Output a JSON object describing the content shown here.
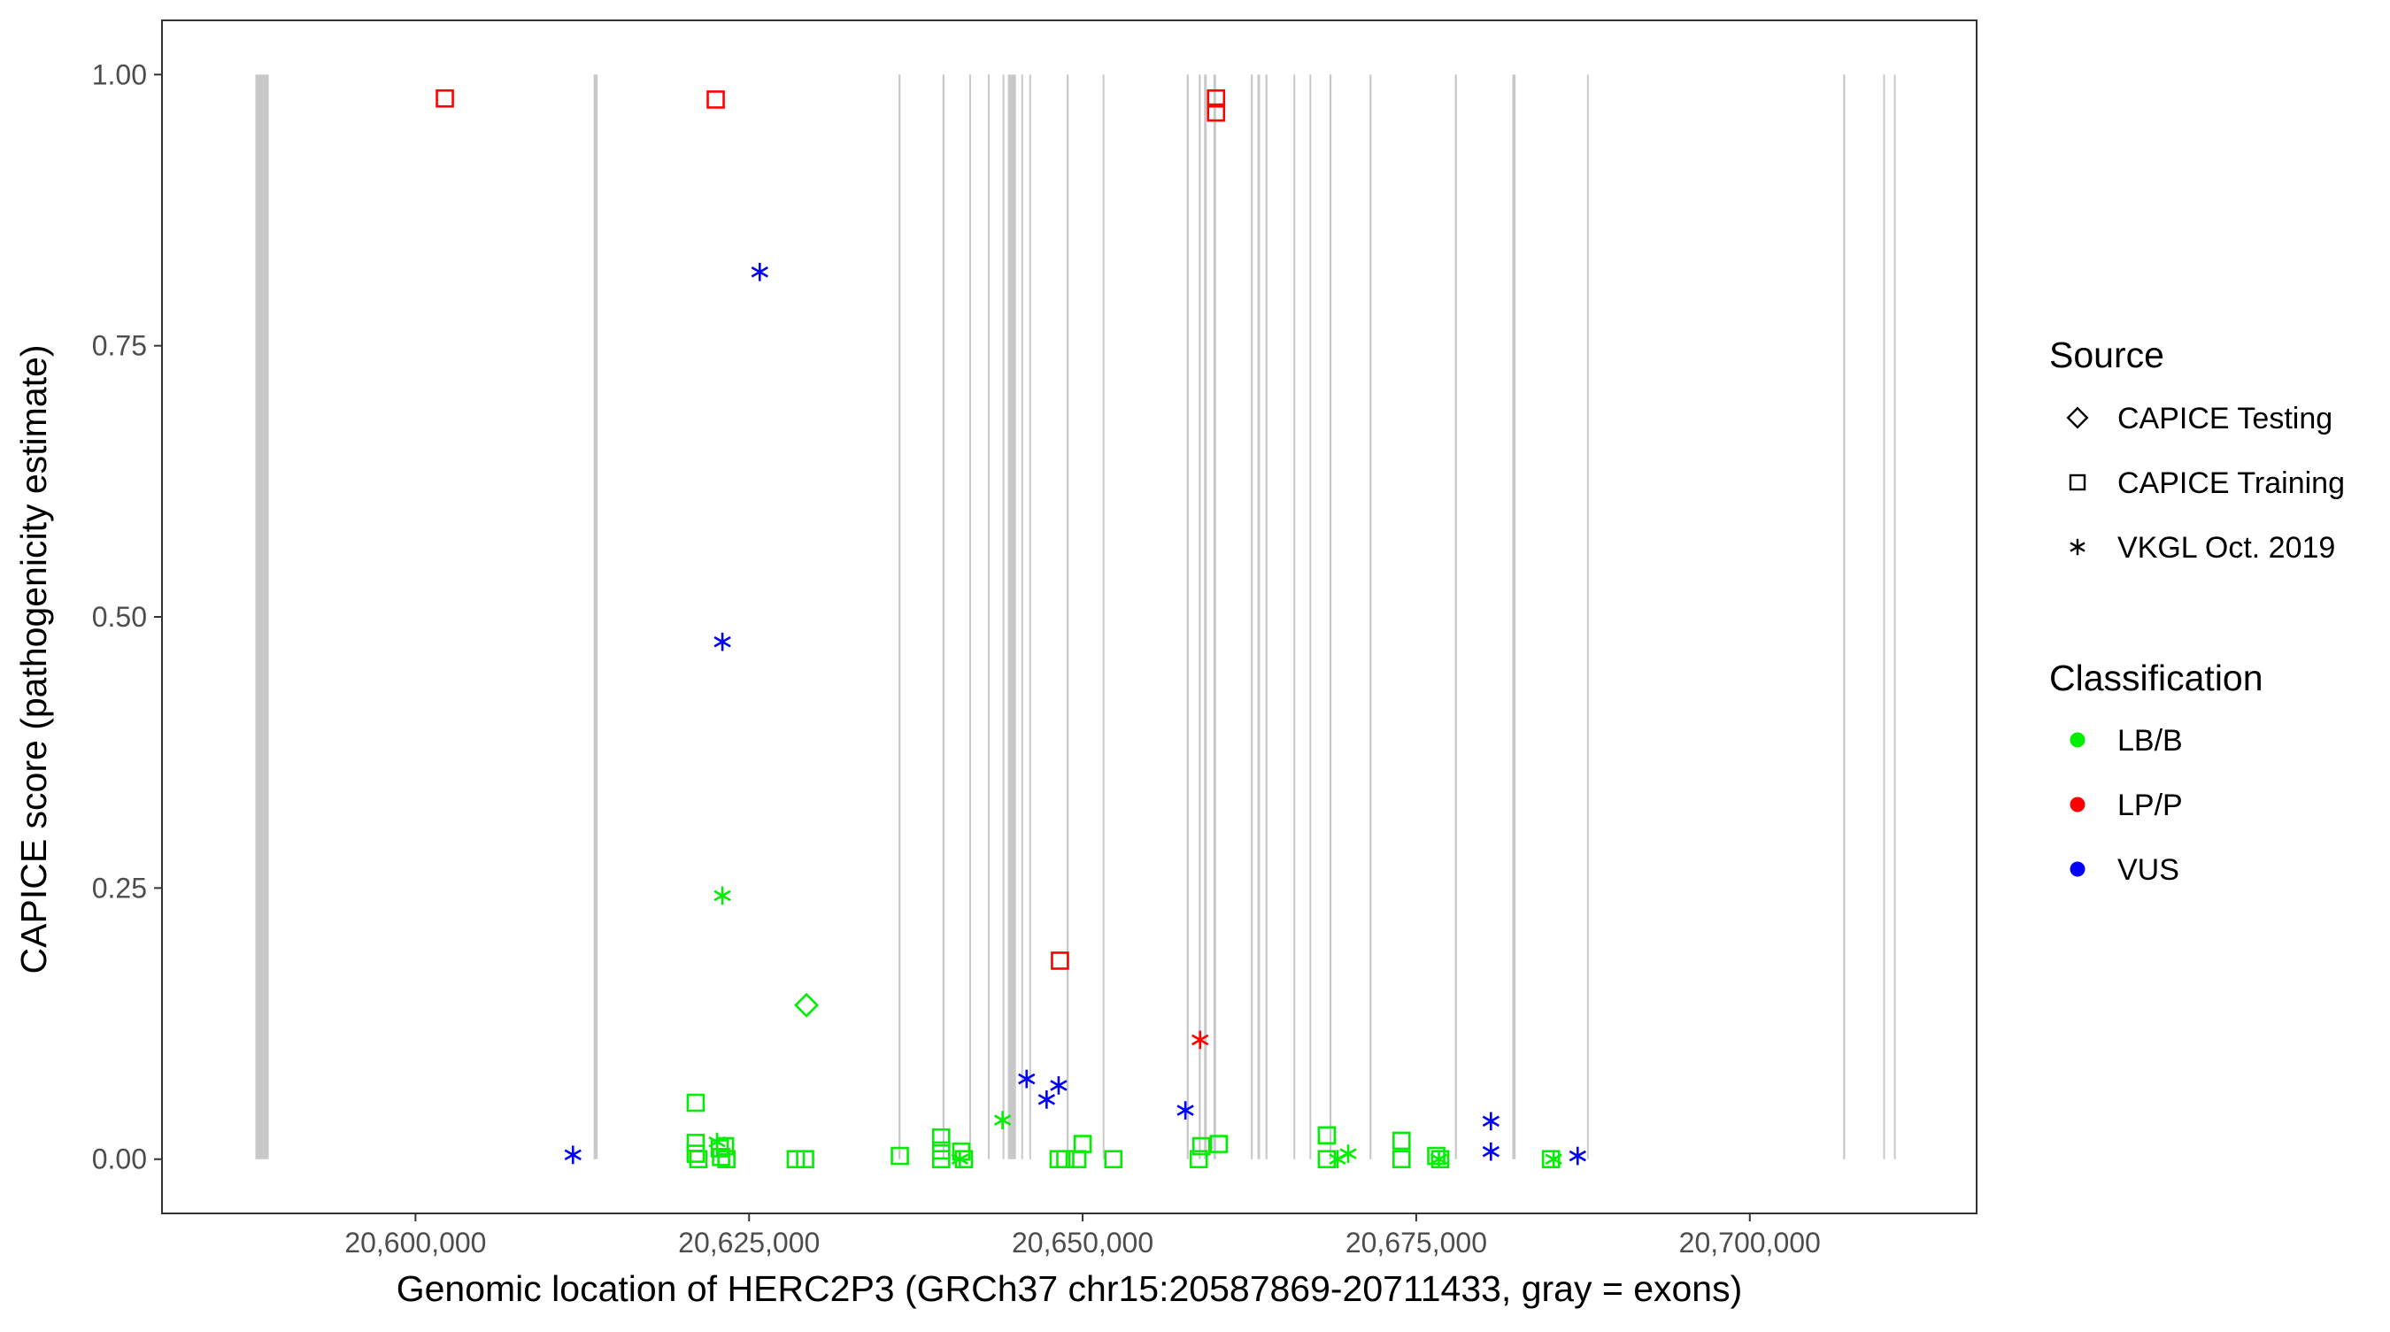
{
  "chart_data": {
    "type": "scatter",
    "xlabel": "Genomic location of HERC2P3 (GRCh37 chr15:20587869-20711433, gray = exons)",
    "ylabel": "CAPICE score (pathogenicity estimate)",
    "xlim": [
      20581000,
      20717000
    ],
    "ylim": [
      -0.05,
      1.05
    ],
    "x_ticks": [
      20600000,
      20625000,
      20650000,
      20675000,
      20700000
    ],
    "x_tick_labels": [
      "20,600,000",
      "20,625,000",
      "20,650,000",
      "20,675,000",
      "20,700,000"
    ],
    "y_ticks": [
      0,
      0.25,
      0.5,
      0.75,
      1
    ],
    "y_tick_labels": [
      "0.00",
      "0.25",
      "0.50",
      "0.75",
      "1.00"
    ],
    "grid": false,
    "exon_color": "#c8c8c8",
    "exons": [
      [
        20588000,
        20589000
      ],
      [
        20613350,
        20613650
      ],
      [
        20636200,
        20636350
      ],
      [
        20639500,
        20639650
      ],
      [
        20641500,
        20641600
      ],
      [
        20642900,
        20643000
      ],
      [
        20644000,
        20644100
      ],
      [
        20644400,
        20645000
      ],
      [
        20645400,
        20645500
      ],
      [
        20646000,
        20646100
      ],
      [
        20648800,
        20648950
      ],
      [
        20651500,
        20651600
      ],
      [
        20657800,
        20657950
      ],
      [
        20658700,
        20658850
      ],
      [
        20659100,
        20659300
      ],
      [
        20659800,
        20660000
      ],
      [
        20662600,
        20662750
      ],
      [
        20663100,
        20663300
      ],
      [
        20663700,
        20663850
      ],
      [
        20665800,
        20665900
      ],
      [
        20667000,
        20667100
      ],
      [
        20668500,
        20668650
      ],
      [
        20671500,
        20671650
      ],
      [
        20677900,
        20678050
      ],
      [
        20682200,
        20682450
      ],
      [
        20687800,
        20687900
      ],
      [
        20707000,
        20707150
      ],
      [
        20710000,
        20710100
      ],
      [
        20710800,
        20710900
      ]
    ],
    "legend": {
      "position": "right",
      "source_title": "Source",
      "source_entries": [
        {
          "label": "CAPICE Testing",
          "shape": "diamond"
        },
        {
          "label": "CAPICE Training",
          "shape": "square"
        },
        {
          "label": "VKGL Oct. 2019",
          "shape": "asterisk"
        }
      ],
      "class_title": "Classification",
      "class_entries": [
        {
          "label": "LB/B",
          "color": "#00ee00"
        },
        {
          "label": "LP/P",
          "color": "#ff0000"
        },
        {
          "label": "VUS",
          "color": "#0000ff"
        }
      ]
    },
    "points": [
      {
        "x": 20602200,
        "y": 0.978,
        "shape": "square",
        "class": "LP/P"
      },
      {
        "x": 20622500,
        "y": 0.977,
        "shape": "square",
        "class": "LP/P"
      },
      {
        "x": 20660000,
        "y": 0.978,
        "shape": "square",
        "class": "LP/P"
      },
      {
        "x": 20660000,
        "y": 0.965,
        "shape": "square",
        "class": "LP/P"
      },
      {
        "x": 20648300,
        "y": 0.183,
        "shape": "square",
        "class": "LP/P"
      },
      {
        "x": 20658800,
        "y": 0.11,
        "shape": "asterisk",
        "class": "LP/P"
      },
      {
        "x": 20625800,
        "y": 0.818,
        "shape": "asterisk",
        "class": "VUS"
      },
      {
        "x": 20623000,
        "y": 0.477,
        "shape": "asterisk",
        "class": "VUS"
      },
      {
        "x": 20611800,
        "y": 0.004,
        "shape": "asterisk",
        "class": "VUS"
      },
      {
        "x": 20645800,
        "y": 0.074,
        "shape": "asterisk",
        "class": "VUS"
      },
      {
        "x": 20648200,
        "y": 0.068,
        "shape": "asterisk",
        "class": "VUS"
      },
      {
        "x": 20647300,
        "y": 0.055,
        "shape": "asterisk",
        "class": "VUS"
      },
      {
        "x": 20657700,
        "y": 0.045,
        "shape": "asterisk",
        "class": "VUS"
      },
      {
        "x": 20680600,
        "y": 0.035,
        "shape": "asterisk",
        "class": "VUS"
      },
      {
        "x": 20680600,
        "y": 0.007,
        "shape": "asterisk",
        "class": "VUS"
      },
      {
        "x": 20687100,
        "y": 0.003,
        "shape": "asterisk",
        "class": "VUS"
      },
      {
        "x": 20623000,
        "y": 0.243,
        "shape": "asterisk",
        "class": "LB/B"
      },
      {
        "x": 20629300,
        "y": 0.142,
        "shape": "diamond",
        "class": "LB/B"
      },
      {
        "x": 20621000,
        "y": 0.052,
        "shape": "square",
        "class": "LB/B"
      },
      {
        "x": 20644000,
        "y": 0.036,
        "shape": "asterisk",
        "class": "LB/B"
      },
      {
        "x": 20621000,
        "y": 0.015,
        "shape": "square",
        "class": "LB/B"
      },
      {
        "x": 20621000,
        "y": 0.005,
        "shape": "square",
        "class": "LB/B"
      },
      {
        "x": 20621200,
        "y": 0.0,
        "shape": "square",
        "class": "LB/B"
      },
      {
        "x": 20622600,
        "y": 0.016,
        "shape": "asterisk",
        "class": "LB/B"
      },
      {
        "x": 20622800,
        "y": 0.01,
        "shape": "square",
        "class": "LB/B"
      },
      {
        "x": 20623200,
        "y": 0.012,
        "shape": "square",
        "class": "LB/B"
      },
      {
        "x": 20622900,
        "y": 0.002,
        "shape": "square",
        "class": "LB/B"
      },
      {
        "x": 20623300,
        "y": 0.0,
        "shape": "square",
        "class": "LB/B"
      },
      {
        "x": 20628500,
        "y": 0.0,
        "shape": "square",
        "class": "LB/B"
      },
      {
        "x": 20629200,
        "y": 0.0,
        "shape": "square",
        "class": "LB/B"
      },
      {
        "x": 20636300,
        "y": 0.003,
        "shape": "square",
        "class": "LB/B"
      },
      {
        "x": 20639400,
        "y": 0.02,
        "shape": "square",
        "class": "LB/B"
      },
      {
        "x": 20639400,
        "y": 0.008,
        "shape": "square",
        "class": "LB/B"
      },
      {
        "x": 20639400,
        "y": 0.0,
        "shape": "square",
        "class": "LB/B"
      },
      {
        "x": 20640900,
        "y": 0.007,
        "shape": "square",
        "class": "LB/B"
      },
      {
        "x": 20640800,
        "y": 0.0,
        "shape": "asterisk",
        "class": "LB/B"
      },
      {
        "x": 20641100,
        "y": 0.0,
        "shape": "square",
        "class": "LB/B"
      },
      {
        "x": 20648200,
        "y": 0.0,
        "shape": "square",
        "class": "LB/B"
      },
      {
        "x": 20648700,
        "y": 0.0,
        "shape": "square",
        "class": "LB/B"
      },
      {
        "x": 20649600,
        "y": 0.0,
        "shape": "square",
        "class": "LB/B"
      },
      {
        "x": 20650000,
        "y": 0.014,
        "shape": "square",
        "class": "LB/B"
      },
      {
        "x": 20652300,
        "y": 0.0,
        "shape": "square",
        "class": "LB/B"
      },
      {
        "x": 20658700,
        "y": 0.0,
        "shape": "square",
        "class": "LB/B"
      },
      {
        "x": 20658900,
        "y": 0.012,
        "shape": "square",
        "class": "LB/B"
      },
      {
        "x": 20660200,
        "y": 0.014,
        "shape": "square",
        "class": "LB/B"
      },
      {
        "x": 20668300,
        "y": 0.022,
        "shape": "square",
        "class": "LB/B"
      },
      {
        "x": 20668300,
        "y": 0.0,
        "shape": "square",
        "class": "LB/B"
      },
      {
        "x": 20669100,
        "y": 0.0,
        "shape": "asterisk",
        "class": "LB/B"
      },
      {
        "x": 20669900,
        "y": 0.005,
        "shape": "asterisk",
        "class": "LB/B"
      },
      {
        "x": 20673900,
        "y": 0.017,
        "shape": "square",
        "class": "LB/B"
      },
      {
        "x": 20673900,
        "y": 0.0,
        "shape": "square",
        "class": "LB/B"
      },
      {
        "x": 20676500,
        "y": 0.003,
        "shape": "square",
        "class": "LB/B"
      },
      {
        "x": 20676800,
        "y": 0.0,
        "shape": "square",
        "class": "LB/B"
      },
      {
        "x": 20676700,
        "y": 0.0,
        "shape": "asterisk",
        "class": "LB/B"
      },
      {
        "x": 20685100,
        "y": 0.0,
        "shape": "square",
        "class": "LB/B"
      },
      {
        "x": 20685300,
        "y": 0.0,
        "shape": "asterisk",
        "class": "LB/B"
      }
    ]
  }
}
